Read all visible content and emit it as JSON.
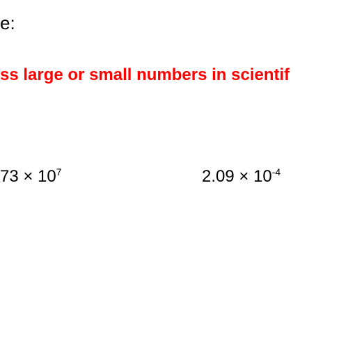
{
  "heading": {
    "fragment_text": "e:",
    "color": "#000000",
    "fontsize": 26
  },
  "subtitle": {
    "text": "ss large or small numbers in scientif",
    "color": "#ff0000",
    "fontsize": 24,
    "bold": true
  },
  "expressions": {
    "left": {
      "coeff": "73",
      "times": " × 10",
      "exp": "7",
      "color": "#000000",
      "fontsize": 24
    },
    "right": {
      "coeff": "2.09",
      "times": " × 10",
      "exp": "-4",
      "color": "#000000",
      "fontsize": 24
    }
  },
  "background_color": "#ffffff"
}
